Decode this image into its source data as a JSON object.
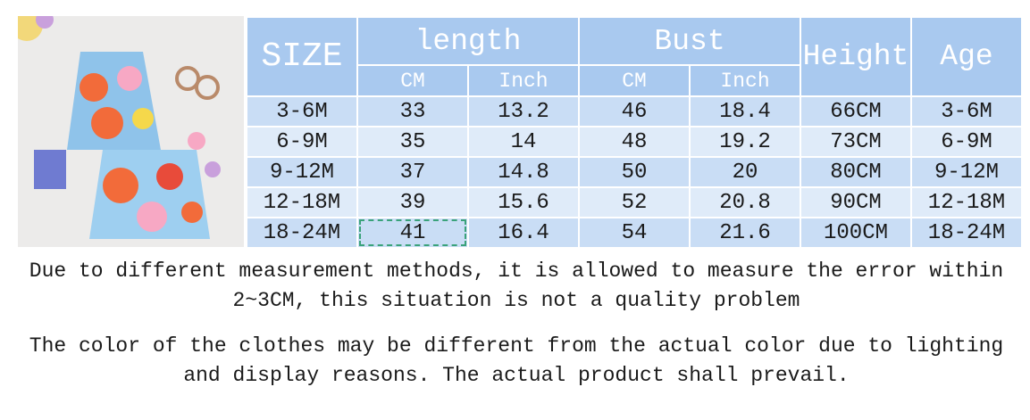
{
  "table": {
    "header": {
      "size": "SIZE",
      "length": "length",
      "bust": "Bust",
      "height": "Height",
      "age": "Age",
      "sub": [
        "CM",
        "Inch",
        "CM",
        "Inch"
      ]
    },
    "rows": [
      [
        "3-6M",
        "33",
        "13.2",
        "46",
        "18.4",
        "66CM",
        "3-6M"
      ],
      [
        "6-9M",
        "35",
        "14",
        "48",
        "19.2",
        "73CM",
        "6-9M"
      ],
      [
        "9-12M",
        "37",
        "14.8",
        "50",
        "20",
        "80CM",
        "9-12M"
      ],
      [
        "12-18M",
        "39",
        "15.6",
        "52",
        "20.8",
        "90CM",
        "12-18M"
      ],
      [
        "18-24M",
        "41",
        "16.4",
        "54",
        "21.6",
        "100CM",
        "18-24M"
      ]
    ]
  },
  "notes": [
    "Due to different measurement methods, it is allowed to measure the error within 2~3CM, this situation is not a quality problem",
    "The color of the clothes may be different from the actual color due to lighting and display reasons. The actual product shall prevail."
  ]
}
